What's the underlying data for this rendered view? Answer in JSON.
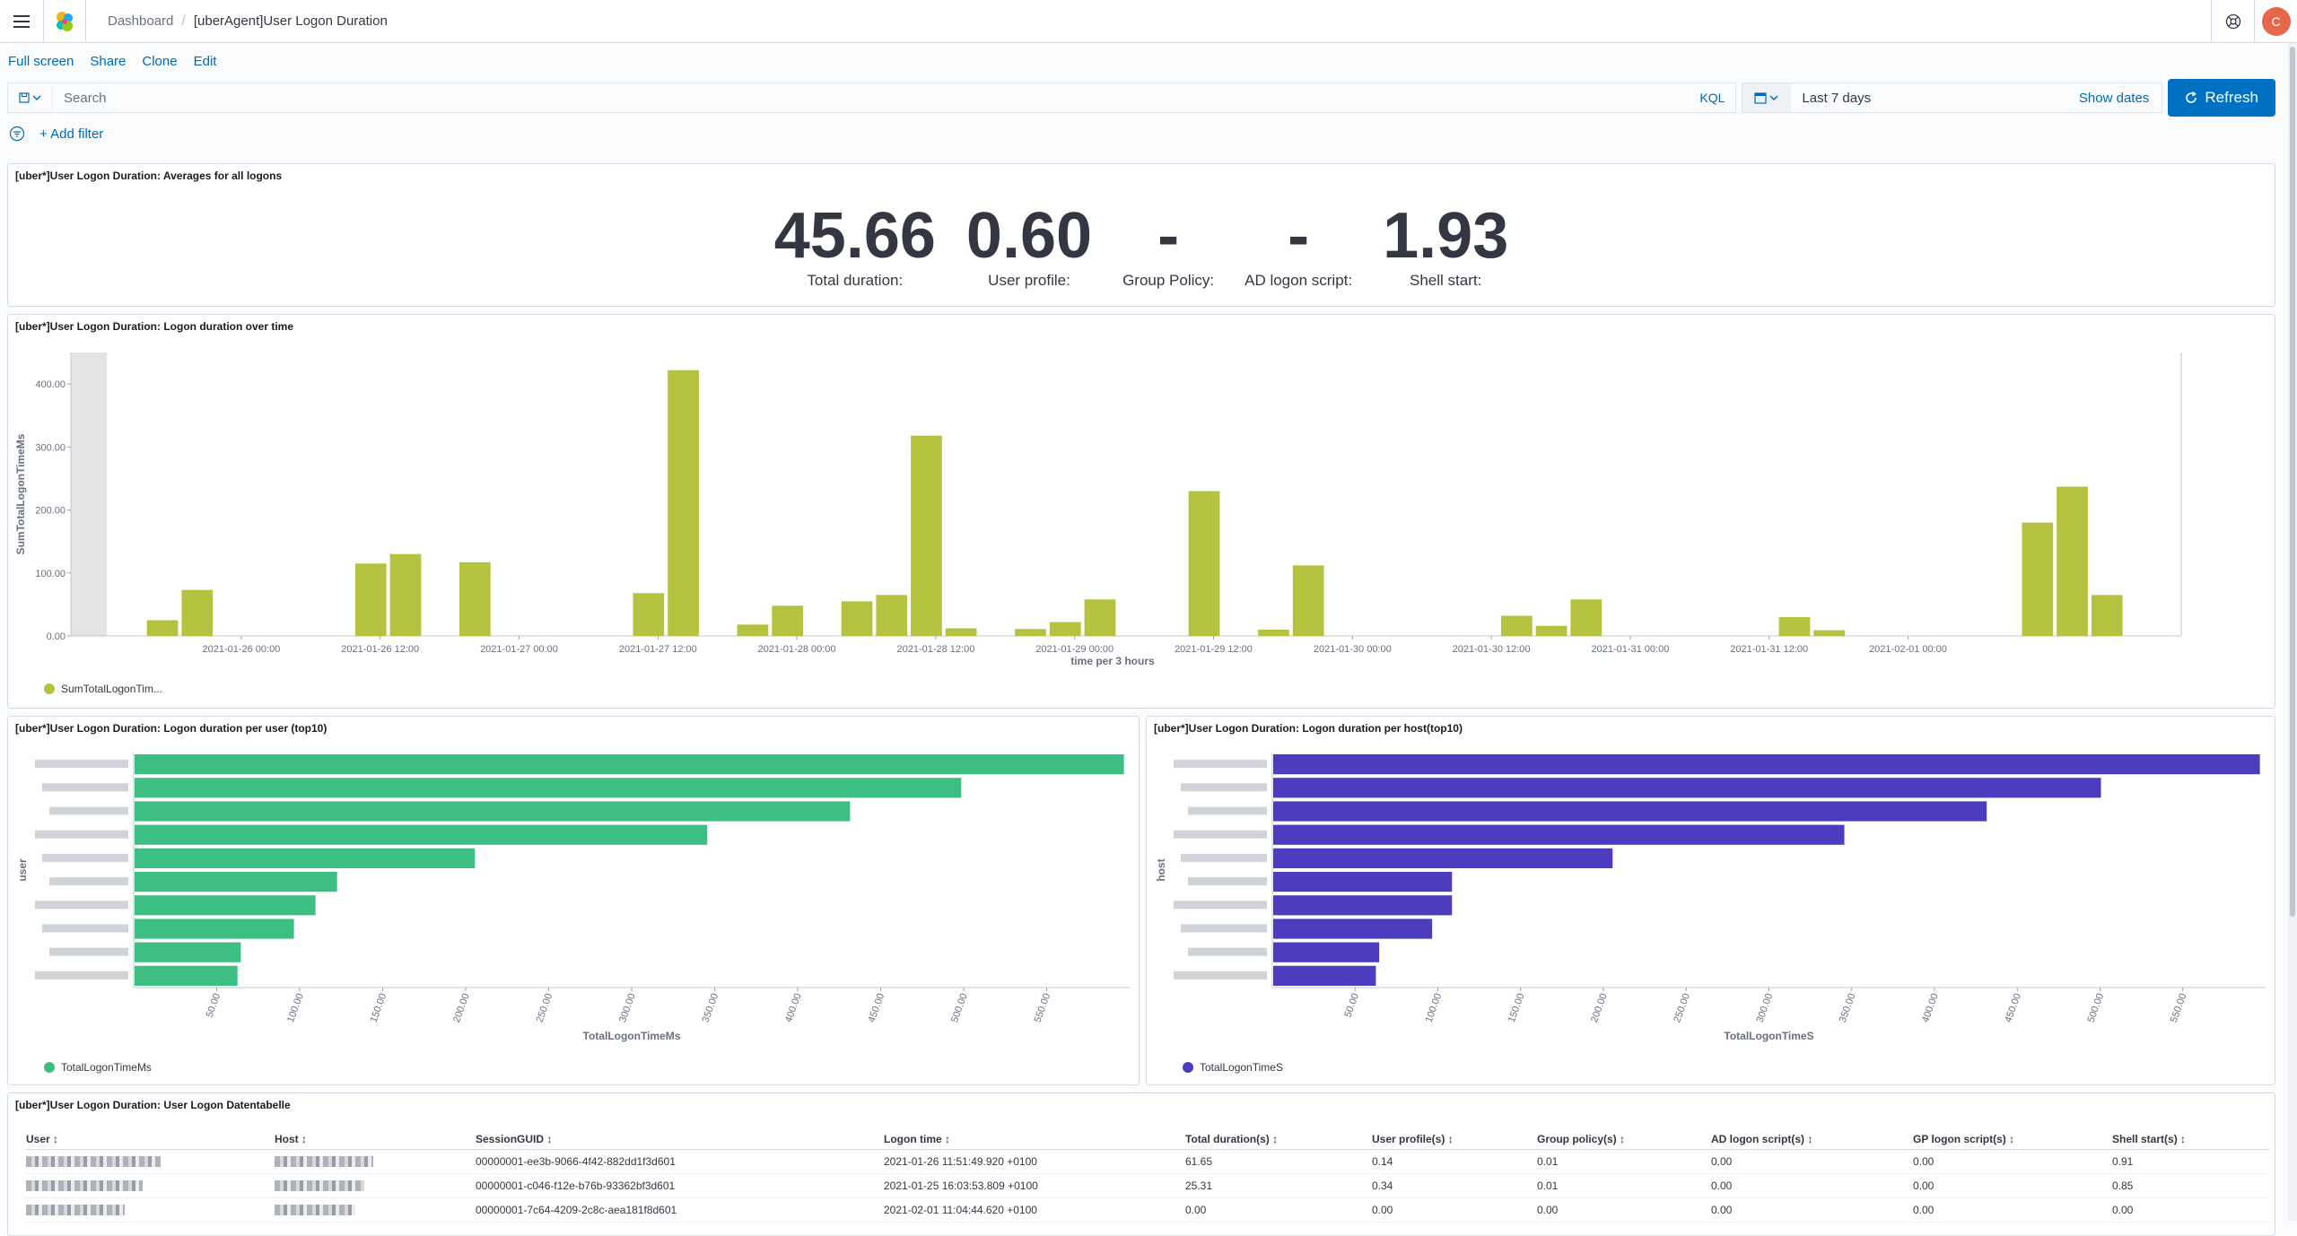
{
  "breadcrumb": {
    "root": "Dashboard",
    "current": "[uberAgent]User Logon Duration"
  },
  "user": {
    "avatar_initial": "C"
  },
  "top_nav": {
    "full_screen": "Full screen",
    "share": "Share",
    "clone": "Clone",
    "edit": "Edit"
  },
  "query": {
    "placeholder": "Search",
    "language": "KQL",
    "date_range": "Last 7 days",
    "show_dates": "Show dates",
    "refresh": "Refresh"
  },
  "filter": {
    "add_filter": "+ Add filter"
  },
  "panels": {
    "averages": {
      "title": "[uber*]User Logon Duration: Averages for all logons",
      "metrics": [
        {
          "value": "45.66",
          "label": "Total duration:"
        },
        {
          "value": "0.60",
          "label": "User profile:"
        },
        {
          "value": "-",
          "label": "Group Policy:"
        },
        {
          "value": "-",
          "label": "AD logon script:"
        },
        {
          "value": "1.93",
          "label": "Shell start:"
        }
      ]
    },
    "over_time": {
      "title": "[uber*]User Logon Duration: Logon duration over time",
      "legend": "SumTotalLogonTim..."
    },
    "per_user": {
      "title": "[uber*]User Logon Duration: Logon duration per user (top10)",
      "legend": "TotalLogonTimeMs"
    },
    "per_host": {
      "title": "[uber*]User Logon Duration: Logon duration per host(top10)",
      "legend": "TotalLogonTimeS"
    },
    "table": {
      "title": "[uber*]User Logon Duration: User Logon Datentabelle",
      "columns": [
        "User",
        "Host",
        "SessionGUID",
        "Logon time",
        "Total duration(s)",
        "User profile(s)",
        "Group policy(s)",
        "AD logon script(s)",
        "GP logon script(s)",
        "Shell start(s)"
      ],
      "rows": [
        [
          "",
          "",
          "00000001-ee3b-9066-4f42-882dd1f3d601",
          "2021-01-26 11:51:49.920 +0100",
          "61.65",
          "0.14",
          "0.01",
          "0.00",
          "0.00",
          "0.91"
        ],
        [
          "",
          "",
          "00000001-c046-f12e-b76b-93362bf3d601",
          "2021-01-25 16:03:53.809 +0100",
          "25.31",
          "0.34",
          "0.01",
          "0.00",
          "0.00",
          "0.85"
        ],
        [
          "",
          "",
          "00000001-7c64-4209-2c8c-aea181f8d601",
          "2021-02-01 11:04:44.620 +0100",
          "0.00",
          "0.00",
          "0.00",
          "0.00",
          "0.00",
          "0.00"
        ]
      ]
    }
  },
  "chart_data": [
    {
      "type": "bar",
      "title": "[uber*]User Logon Duration: Logon duration over time",
      "xlabel": "time per 3 hours",
      "ylabel": "SumTotalLogonTimeMs",
      "ylim": [
        0,
        450
      ],
      "yticks": [
        "0.00",
        "100.00",
        "200.00",
        "300.00",
        "400.00"
      ],
      "xticks": [
        "2021-01-26 00:00",
        "2021-01-26 12:00",
        "2021-01-27 00:00",
        "2021-01-27 12:00",
        "2021-01-28 00:00",
        "2021-01-28 12:00",
        "2021-01-29 00:00",
        "2021-01-29 12:00",
        "2021-01-30 00:00",
        "2021-01-30 12:00",
        "2021-01-31 00:00",
        "2021-01-31 12:00",
        "2021-02-01 00:00"
      ],
      "bin_hours": 3,
      "series": [
        {
          "name": "SumTotalLogonTim...",
          "color": "#b5c23f",
          "points": [
            [
              1,
              25
            ],
            [
              2,
              73
            ],
            [
              7,
              115
            ],
            [
              8,
              130
            ],
            [
              10,
              117
            ],
            [
              15,
              68
            ],
            [
              16,
              422
            ],
            [
              18,
              18
            ],
            [
              19,
              48
            ],
            [
              21,
              55
            ],
            [
              22,
              65
            ],
            [
              23,
              318
            ],
            [
              24,
              12
            ],
            [
              26,
              11
            ],
            [
              27,
              22
            ],
            [
              28,
              58
            ],
            [
              31,
              230
            ],
            [
              33,
              10
            ],
            [
              34,
              112
            ],
            [
              40,
              32
            ],
            [
              41,
              16
            ],
            [
              42,
              58
            ],
            [
              48,
              30
            ],
            [
              49,
              9
            ],
            [
              55,
              180
            ],
            [
              56,
              237
            ],
            [
              57,
              65
            ]
          ]
        }
      ]
    },
    {
      "type": "bar",
      "orientation": "horizontal",
      "title": "[uber*]User Logon Duration: Logon duration per user (top10)",
      "xlabel": "TotalLogonTimeMs",
      "ylabel": "user",
      "xlim": [
        0,
        600
      ],
      "xticks": [
        "50.00",
        "100.00",
        "150.00",
        "200.00",
        "250.00",
        "300.00",
        "350.00",
        "400.00",
        "450.00",
        "500.00",
        "550.00"
      ],
      "series": [
        {
          "name": "TotalLogonTimeMs",
          "color": "#3dbf84",
          "values": [
            596,
            498,
            431,
            345,
            205,
            122,
            109,
            96,
            64,
            62
          ]
        }
      ]
    },
    {
      "type": "bar",
      "orientation": "horizontal",
      "title": "[uber*]User Logon Duration: Logon duration per host(top10)",
      "xlabel": "TotalLogonTimeS",
      "ylabel": "host",
      "xlim": [
        0,
        600
      ],
      "xticks": [
        "50.00",
        "100.00",
        "150.00",
        "200.00",
        "250.00",
        "300.00",
        "350.00",
        "400.00",
        "450.00",
        "500.00",
        "550.00"
      ],
      "series": [
        {
          "name": "TotalLogonTimeS",
          "color": "#4c3dbf",
          "values": [
            596,
            500,
            431,
            345,
            205,
            108,
            108,
            96,
            64,
            62
          ]
        }
      ]
    }
  ]
}
